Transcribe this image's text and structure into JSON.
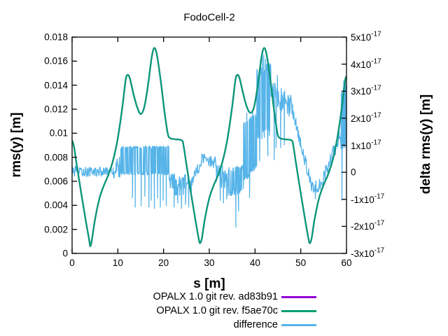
{
  "chart_data": {
    "type": "line",
    "title": "FodoCell-2",
    "xlabel": "s [m]",
    "ylabel_left": "rms(y) [m]",
    "ylabel_right": "delta rms(y) [m]",
    "xlim": [
      0,
      60
    ],
    "ylim_left": [
      0,
      0.018
    ],
    "ylim_right_1e-17": [
      -3,
      5
    ],
    "grid": false,
    "legend_position": "below-plot-right",
    "xticks": [
      [
        0,
        "0"
      ],
      [
        10,
        "10"
      ],
      [
        20,
        "20"
      ],
      [
        30,
        "30"
      ],
      [
        40,
        "40"
      ],
      [
        50,
        "50"
      ],
      [
        60,
        "60"
      ]
    ],
    "yticks_left": [
      [
        0.018,
        "0.018"
      ],
      [
        0.016,
        "0.016"
      ],
      [
        0.014,
        "0.014"
      ],
      [
        0.012,
        "0.012"
      ],
      [
        0.01,
        "0.01"
      ],
      [
        0.008,
        "0.008"
      ],
      [
        0.006,
        "0.006"
      ],
      [
        0.004,
        "0.004"
      ],
      [
        0.002,
        "0.002"
      ],
      [
        0,
        "0"
      ]
    ],
    "yticks_right": [
      [
        5,
        "5x10^-17"
      ],
      [
        4,
        "4x10^-17"
      ],
      [
        3,
        "3x10^-17"
      ],
      [
        2,
        "2x10^-17"
      ],
      [
        1,
        "1x10^-17"
      ],
      [
        0,
        "0"
      ],
      [
        -1,
        "-1x10^-17"
      ],
      [
        -2,
        "-2x10^-17"
      ],
      [
        -3,
        "-3x10^-17"
      ]
    ],
    "series": [
      {
        "name": "OPALX 1.0 git rev. ad83b91",
        "color": "#9400d3",
        "axis": "left",
        "note": "coincides with f5ae70c curve (hidden beneath it)",
        "keypoints": [
          [
            0,
            0.0094
          ],
          [
            0.4,
            0.0089
          ],
          [
            1,
            0.0074
          ],
          [
            2,
            0.005
          ],
          [
            3,
            0.0027
          ],
          [
            3.7,
            0.0012
          ],
          [
            4,
            0.0006
          ],
          [
            4.4,
            0.0013
          ],
          [
            5,
            0.0028
          ],
          [
            6,
            0.0046
          ],
          [
            7,
            0.0057
          ],
          [
            8,
            0.0066
          ],
          [
            9,
            0.0078
          ],
          [
            10,
            0.0096
          ],
          [
            11,
            0.0122
          ],
          [
            11.7,
            0.0144
          ],
          [
            12.1,
            0.01485
          ],
          [
            12.6,
            0.0146
          ],
          [
            13.4,
            0.0133
          ],
          [
            14.2,
            0.0122
          ],
          [
            15,
            0.0116
          ],
          [
            15.8,
            0.0122
          ],
          [
            16.6,
            0.014
          ],
          [
            17.4,
            0.0163
          ],
          [
            18,
            0.0171
          ],
          [
            18.6,
            0.0164
          ],
          [
            19.4,
            0.0143
          ],
          [
            20.2,
            0.0118
          ],
          [
            20.9,
            0.01
          ],
          [
            21.4,
            0.0096
          ],
          [
            22.5,
            0.0095
          ],
          [
            24,
            0.0094
          ],
          [
            24.4,
            0.0089
          ],
          [
            25,
            0.0074
          ],
          [
            26,
            0.005
          ],
          [
            27,
            0.0027
          ],
          [
            27.7,
            0.0012
          ],
          [
            28,
            0.00085
          ],
          [
            28.4,
            0.0013
          ],
          [
            29,
            0.0028
          ],
          [
            30,
            0.0046
          ],
          [
            31,
            0.0057
          ],
          [
            32,
            0.0066
          ],
          [
            33,
            0.0078
          ],
          [
            34,
            0.0096
          ],
          [
            35,
            0.0122
          ],
          [
            35.7,
            0.0144
          ],
          [
            36.1,
            0.01485
          ],
          [
            36.6,
            0.0146
          ],
          [
            37.4,
            0.0133
          ],
          [
            38.2,
            0.0122
          ],
          [
            39,
            0.0117
          ],
          [
            39.8,
            0.0122
          ],
          [
            40.6,
            0.014
          ],
          [
            41.4,
            0.0163
          ],
          [
            42,
            0.0171
          ],
          [
            42.6,
            0.0164
          ],
          [
            43.4,
            0.0143
          ],
          [
            44.2,
            0.0118
          ],
          [
            44.9,
            0.01
          ],
          [
            45.4,
            0.0096
          ],
          [
            46.5,
            0.0095
          ],
          [
            48,
            0.0094
          ],
          [
            48.4,
            0.0089
          ],
          [
            49,
            0.0074
          ],
          [
            50,
            0.005
          ],
          [
            51,
            0.0027
          ],
          [
            51.7,
            0.0012
          ],
          [
            52,
            0.00085
          ],
          [
            52.4,
            0.0013
          ],
          [
            53,
            0.0028
          ],
          [
            54,
            0.0046
          ],
          [
            55,
            0.0057
          ],
          [
            56,
            0.0066
          ],
          [
            57,
            0.0078
          ],
          [
            58,
            0.0096
          ],
          [
            59,
            0.0122
          ],
          [
            59.7,
            0.0144
          ],
          [
            60,
            0.0147
          ]
        ]
      },
      {
        "name": "OPALX 1.0 git rev. f5ae70c",
        "color": "#009e73",
        "axis": "left",
        "keypoints": [
          [
            0,
            0.0094
          ],
          [
            0.4,
            0.0089
          ],
          [
            1,
            0.0074
          ],
          [
            2,
            0.005
          ],
          [
            3,
            0.0027
          ],
          [
            3.7,
            0.0012
          ],
          [
            4,
            0.0006
          ],
          [
            4.4,
            0.0013
          ],
          [
            5,
            0.0028
          ],
          [
            6,
            0.0046
          ],
          [
            7,
            0.0057
          ],
          [
            8,
            0.0066
          ],
          [
            9,
            0.0078
          ],
          [
            10,
            0.0096
          ],
          [
            11,
            0.0122
          ],
          [
            11.7,
            0.0144
          ],
          [
            12.1,
            0.01485
          ],
          [
            12.6,
            0.0146
          ],
          [
            13.4,
            0.0133
          ],
          [
            14.2,
            0.0122
          ],
          [
            15,
            0.0116
          ],
          [
            15.8,
            0.0122
          ],
          [
            16.6,
            0.014
          ],
          [
            17.4,
            0.0163
          ],
          [
            18,
            0.0171
          ],
          [
            18.6,
            0.0164
          ],
          [
            19.4,
            0.0143
          ],
          [
            20.2,
            0.0118
          ],
          [
            20.9,
            0.01
          ],
          [
            21.4,
            0.0096
          ],
          [
            22.5,
            0.0095
          ],
          [
            24,
            0.0094
          ],
          [
            24.4,
            0.0089
          ],
          [
            25,
            0.0074
          ],
          [
            26,
            0.005
          ],
          [
            27,
            0.0027
          ],
          [
            27.7,
            0.0012
          ],
          [
            28,
            0.00085
          ],
          [
            28.4,
            0.0013
          ],
          [
            29,
            0.0028
          ],
          [
            30,
            0.0046
          ],
          [
            31,
            0.0057
          ],
          [
            32,
            0.0066
          ],
          [
            33,
            0.0078
          ],
          [
            34,
            0.0096
          ],
          [
            35,
            0.0122
          ],
          [
            35.7,
            0.0144
          ],
          [
            36.1,
            0.01485
          ],
          [
            36.6,
            0.0146
          ],
          [
            37.4,
            0.0133
          ],
          [
            38.2,
            0.0122
          ],
          [
            39,
            0.0117
          ],
          [
            39.8,
            0.0122
          ],
          [
            40.6,
            0.014
          ],
          [
            41.4,
            0.0163
          ],
          [
            42,
            0.0171
          ],
          [
            42.6,
            0.0164
          ],
          [
            43.4,
            0.0143
          ],
          [
            44.2,
            0.0118
          ],
          [
            44.9,
            0.01
          ],
          [
            45.4,
            0.0096
          ],
          [
            46.5,
            0.0095
          ],
          [
            48,
            0.0094
          ],
          [
            48.4,
            0.0089
          ],
          [
            49,
            0.0074
          ],
          [
            50,
            0.005
          ],
          [
            51,
            0.0027
          ],
          [
            51.7,
            0.0012
          ],
          [
            52,
            0.00085
          ],
          [
            52.4,
            0.0013
          ],
          [
            53,
            0.0028
          ],
          [
            54,
            0.0046
          ],
          [
            55,
            0.0057
          ],
          [
            56,
            0.0066
          ],
          [
            57,
            0.0078
          ],
          [
            58,
            0.0096
          ],
          [
            59,
            0.0122
          ],
          [
            59.7,
            0.0144
          ],
          [
            60,
            0.0147
          ]
        ]
      },
      {
        "name": "difference",
        "color": "#56b4e9",
        "axis": "right",
        "value_unit": "1e-17 m",
        "noise_seed": 12345,
        "segments": [
          {
            "s0": 0,
            "s1": 9,
            "mode": "uniform",
            "lo0": -0.18,
            "lo1": -0.15,
            "hi0": 0.25,
            "hi1": 0.18
          },
          {
            "s0": 9,
            "s1": 10.6,
            "mode": "uniform",
            "lo0": -0.25,
            "lo1": -0.2,
            "hi0": 0.45,
            "hi1": 0.6
          },
          {
            "s0": 10.6,
            "s1": 21.2,
            "mode": "bimodal",
            "lo0": -0.05,
            "lo1": -0.05,
            "hi0": 0.92,
            "hi1": 0.95,
            "p": 0.55,
            "jit": 0.05
          },
          {
            "s0": 21.2,
            "s1": 26.3,
            "mode": "uniform",
            "lo0": -0.85,
            "lo1": -0.9,
            "hi0": 0,
            "hi1": -0.1
          },
          {
            "s0": 26.3,
            "s1": 28.3,
            "mode": "uniform",
            "lo0": -0.55,
            "lo1": 0.2,
            "hi0": -0.1,
            "hi1": 0.7
          },
          {
            "s0": 28.3,
            "s1": 31.5,
            "mode": "uniform",
            "lo0": 0.25,
            "lo1": 0.1,
            "hi0": 0.75,
            "hi1": 0.6
          },
          {
            "s0": 31.5,
            "s1": 34.2,
            "mode": "uniform",
            "lo0": -0.35,
            "lo1": -0.95,
            "hi0": 0.45,
            "hi1": 0.1
          },
          {
            "s0": 34.2,
            "s1": 37.5,
            "mode": "bimodal",
            "lo0": -0.8,
            "lo1": -0.7,
            "hi0": 0.1,
            "hi1": 0.2,
            "p": 0.5,
            "jit": 0.1
          },
          {
            "s0": 37.5,
            "s1": 40.4,
            "mode": "bimodal",
            "lo0": -0.3,
            "lo1": 0.3,
            "hi0": 1.8,
            "hi1": 2.1,
            "p": 0.5,
            "jit": 0.12
          },
          {
            "s0": 40.4,
            "s1": 43.5,
            "mode": "bimodal",
            "lo0": 1.3,
            "lo1": 1.5,
            "hi0": 3.7,
            "hi1": 3.95,
            "p": 0.55,
            "jit": 0.15
          },
          {
            "s0": 43.5,
            "s1": 48.4,
            "mode": "uniform",
            "lo0": 2.6,
            "lo1": 1.8,
            "hi0": 3.5,
            "hi1": 2.8
          },
          {
            "s0": 48.4,
            "s1": 52.4,
            "mode": "uniform",
            "lo0": 1.8,
            "lo1": -0.75,
            "hi0": 2.4,
            "hi1": -0.3
          },
          {
            "s0": 52.4,
            "s1": 54.6,
            "mode": "uniform",
            "lo0": -0.85,
            "lo1": -0.7,
            "hi0": -0.3,
            "hi1": -0.2
          },
          {
            "s0": 54.6,
            "s1": 58.8,
            "mode": "uniform",
            "lo0": -0.6,
            "lo1": 1,
            "hi0": -0.1,
            "hi1": 1.7
          },
          {
            "s0": 58.8,
            "s1": 60,
            "mode": "bimodal",
            "lo0": 0.8,
            "lo1": 1,
            "hi0": 2.9,
            "hi1": 3.3,
            "p": 0.5,
            "jit": 0.15
          }
        ],
        "spikes": [
          [
            13.2,
            -0.95
          ],
          [
            13.8,
            -1.3
          ],
          [
            15.1,
            -1.25
          ],
          [
            15.9,
            -0.9
          ],
          [
            16.8,
            -1.3
          ],
          [
            17.3,
            -1.05
          ],
          [
            18,
            -1.35
          ],
          [
            18.7,
            -0.95
          ],
          [
            19.3,
            -1.3
          ],
          [
            19.9,
            -1.05
          ],
          [
            20.6,
            -1.25
          ],
          [
            22.3,
            -1.3
          ],
          [
            23.1,
            -1.15
          ],
          [
            23.9,
            -1.35
          ],
          [
            24.8,
            -1.2
          ],
          [
            25.5,
            -1.3
          ],
          [
            32.4,
            -1.05
          ],
          [
            33.1,
            -1.15
          ],
          [
            33.8,
            -1
          ],
          [
            35.8,
            -2.05
          ],
          [
            36.4,
            -1.45
          ],
          [
            38.2,
            2.2
          ],
          [
            38.8,
            -0.95
          ],
          [
            39.5,
            2.25
          ],
          [
            41,
            0.4
          ],
          [
            41.6,
            4.3
          ],
          [
            41.9,
            4.35
          ],
          [
            42.3,
            4.2
          ],
          [
            42.8,
            0.6
          ],
          [
            44.2,
            0.45
          ],
          [
            44.6,
            0.9
          ],
          [
            44.9,
            3.6
          ],
          [
            45.6,
            0.9
          ],
          [
            46.4,
            1
          ],
          [
            53.2,
            -1
          ],
          [
            59,
            -1.05
          ],
          [
            59.4,
            3.4
          ],
          [
            59.7,
            3.35
          ]
        ]
      }
    ],
    "colors": {
      "axis": "#000000",
      "background": "#ffffff"
    }
  }
}
